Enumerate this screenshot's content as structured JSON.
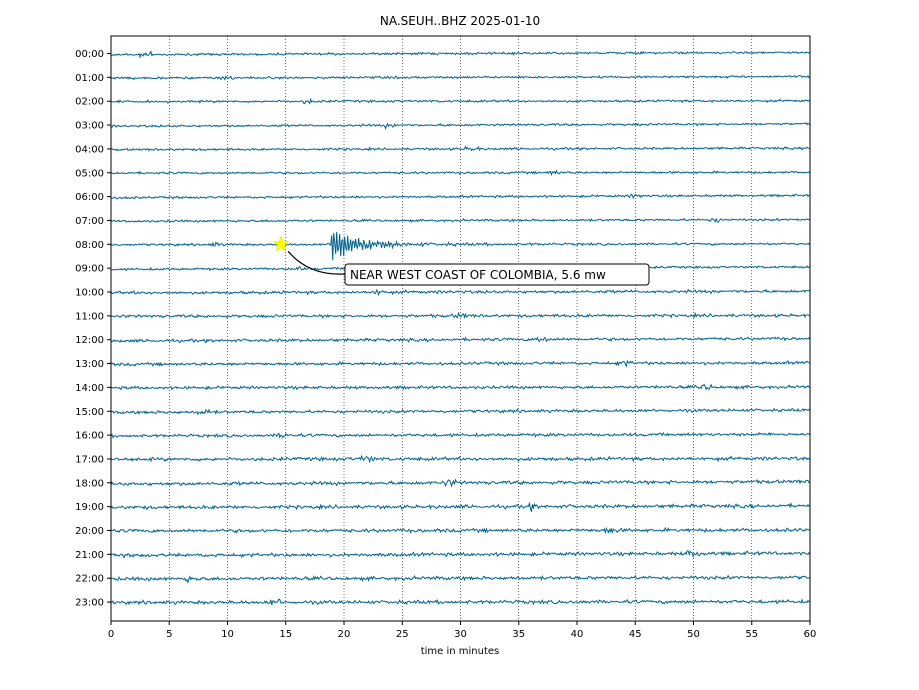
{
  "chart_data": {
    "type": "line",
    "title": "NA.SEUH..BHZ 2025-01-10",
    "xlabel": "time in minutes",
    "ylabel": "",
    "xlim": [
      0,
      60
    ],
    "x_ticks": [
      0,
      5,
      10,
      15,
      20,
      25,
      30,
      35,
      40,
      45,
      50,
      55,
      60
    ],
    "grid": "vertical dotted lines at each 5-minute tick",
    "trace_color": "#00638f",
    "hour_labels": [
      "00:00",
      "01:00",
      "02:00",
      "03:00",
      "04:00",
      "05:00",
      "06:00",
      "07:00",
      "08:00",
      "09:00",
      "10:00",
      "11:00",
      "12:00",
      "13:00",
      "14:00",
      "15:00",
      "16:00",
      "17:00",
      "18:00",
      "19:00",
      "20:00",
      "21:00",
      "22:00",
      "23:00"
    ],
    "series_description": "continuous seismic trace, one line per hour",
    "event": {
      "label": "NEAR WEST COAST OF COLOMBIA, 5.6 mw",
      "marker": "star",
      "marker_color": "#ffff00",
      "hour": "08:00",
      "minute": 14.6,
      "arrival_minute": 18.9
    }
  }
}
